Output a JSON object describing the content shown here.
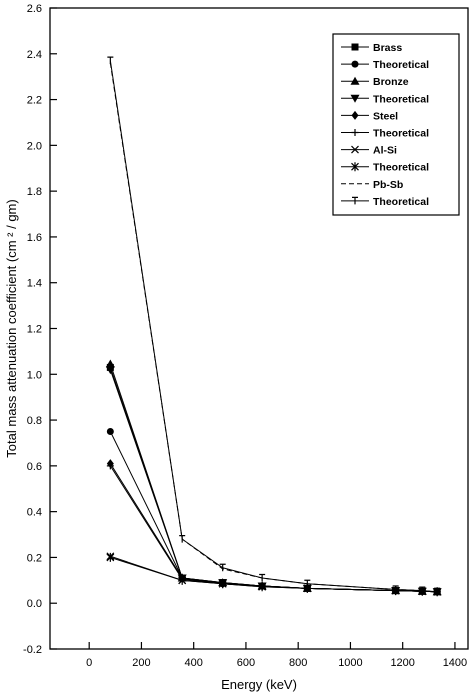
{
  "chart_data": {
    "type": "line",
    "xlabel": "Energy (keV)",
    "ylabel": "Total mass attenuation coefficient (cm  ² / gm)",
    "xlim": [
      -150,
      1450
    ],
    "ylim": [
      -0.2,
      2.6
    ],
    "xticks": [
      0,
      200,
      400,
      600,
      800,
      1000,
      1200,
      1400
    ],
    "yticks": [
      -0.2,
      0.0,
      0.2,
      0.4,
      0.6,
      0.8,
      1.0,
      1.2,
      1.4,
      1.6,
      1.8,
      2.0,
      2.2,
      2.4,
      2.6
    ],
    "ytick_labels": [
      "-0.2",
      "0.0",
      "0.2",
      "0.4",
      "0.6",
      "0.8",
      "1.0",
      "1.2",
      "1.4",
      "1.6",
      "1.8",
      "2.0",
      "2.2",
      "2.4",
      "2.6"
    ],
    "grid": false,
    "legend_position": "top-right",
    "series": [
      {
        "name": "Brass",
        "marker": "square",
        "dash": "solid",
        "x": [
          81,
          356,
          511,
          662,
          835,
          1173,
          1275,
          1332
        ],
        "y": [
          1.03,
          0.11,
          0.09,
          0.075,
          0.065,
          0.055,
          0.052,
          0.05
        ]
      },
      {
        "name": "Theoretical",
        "marker": "circle",
        "dash": "solid",
        "x": [
          81,
          356,
          511,
          662,
          835,
          1173,
          1275,
          1332
        ],
        "y": [
          0.75,
          0.11,
          0.085,
          0.075,
          0.065,
          0.055,
          0.052,
          0.05
        ]
      },
      {
        "name": "Bronze",
        "marker": "triangle-up",
        "dash": "solid",
        "x": [
          81,
          356,
          511,
          662,
          835,
          1173,
          1275,
          1332
        ],
        "y": [
          1.045,
          0.11,
          0.09,
          0.075,
          0.065,
          0.055,
          0.052,
          0.05
        ]
      },
      {
        "name": "Theoretical",
        "marker": "triangle-down",
        "dash": "solid",
        "x": [
          81,
          356,
          511,
          662,
          835,
          1173,
          1275,
          1332
        ],
        "y": [
          1.02,
          0.11,
          0.09,
          0.075,
          0.065,
          0.055,
          0.052,
          0.05
        ]
      },
      {
        "name": "Steel",
        "marker": "diamond",
        "dash": "solid",
        "x": [
          81,
          356,
          511,
          662,
          835,
          1173,
          1275,
          1332
        ],
        "y": [
          0.61,
          0.11,
          0.085,
          0.075,
          0.065,
          0.055,
          0.052,
          0.05
        ]
      },
      {
        "name": "Theoretical",
        "marker": "plus",
        "dash": "solid",
        "x": [
          81,
          356,
          511,
          662,
          835,
          1173,
          1275,
          1332
        ],
        "y": [
          0.6,
          0.105,
          0.085,
          0.075,
          0.065,
          0.055,
          0.052,
          0.05
        ]
      },
      {
        "name": "Al-Si",
        "marker": "x",
        "dash": "solid",
        "x": [
          81,
          356,
          511,
          662,
          835,
          1173,
          1275,
          1332
        ],
        "y": [
          0.205,
          0.1,
          0.085,
          0.072,
          0.065,
          0.055,
          0.052,
          0.05
        ]
      },
      {
        "name": "Theoretical",
        "marker": "asterisk",
        "dash": "solid",
        "x": [
          81,
          356,
          511,
          662,
          835,
          1173,
          1275,
          1332
        ],
        "y": [
          0.2,
          0.1,
          0.085,
          0.072,
          0.065,
          0.055,
          0.052,
          0.05
        ]
      },
      {
        "name": "Pb-Sb",
        "marker": "none",
        "dash": "dashed",
        "x": [
          81,
          356,
          511,
          662,
          835,
          1173,
          1275,
          1332
        ],
        "y": [
          2.36,
          0.28,
          0.15,
          0.11,
          0.085,
          0.06,
          0.055,
          0.05
        ]
      },
      {
        "name": "Theoretical",
        "marker": "vbar",
        "dash": "solid",
        "x": [
          81,
          356,
          511,
          662,
          835,
          1173,
          1275,
          1332
        ],
        "y": [
          2.37,
          0.28,
          0.155,
          0.11,
          0.085,
          0.06,
          0.055,
          0.05
        ]
      }
    ]
  }
}
